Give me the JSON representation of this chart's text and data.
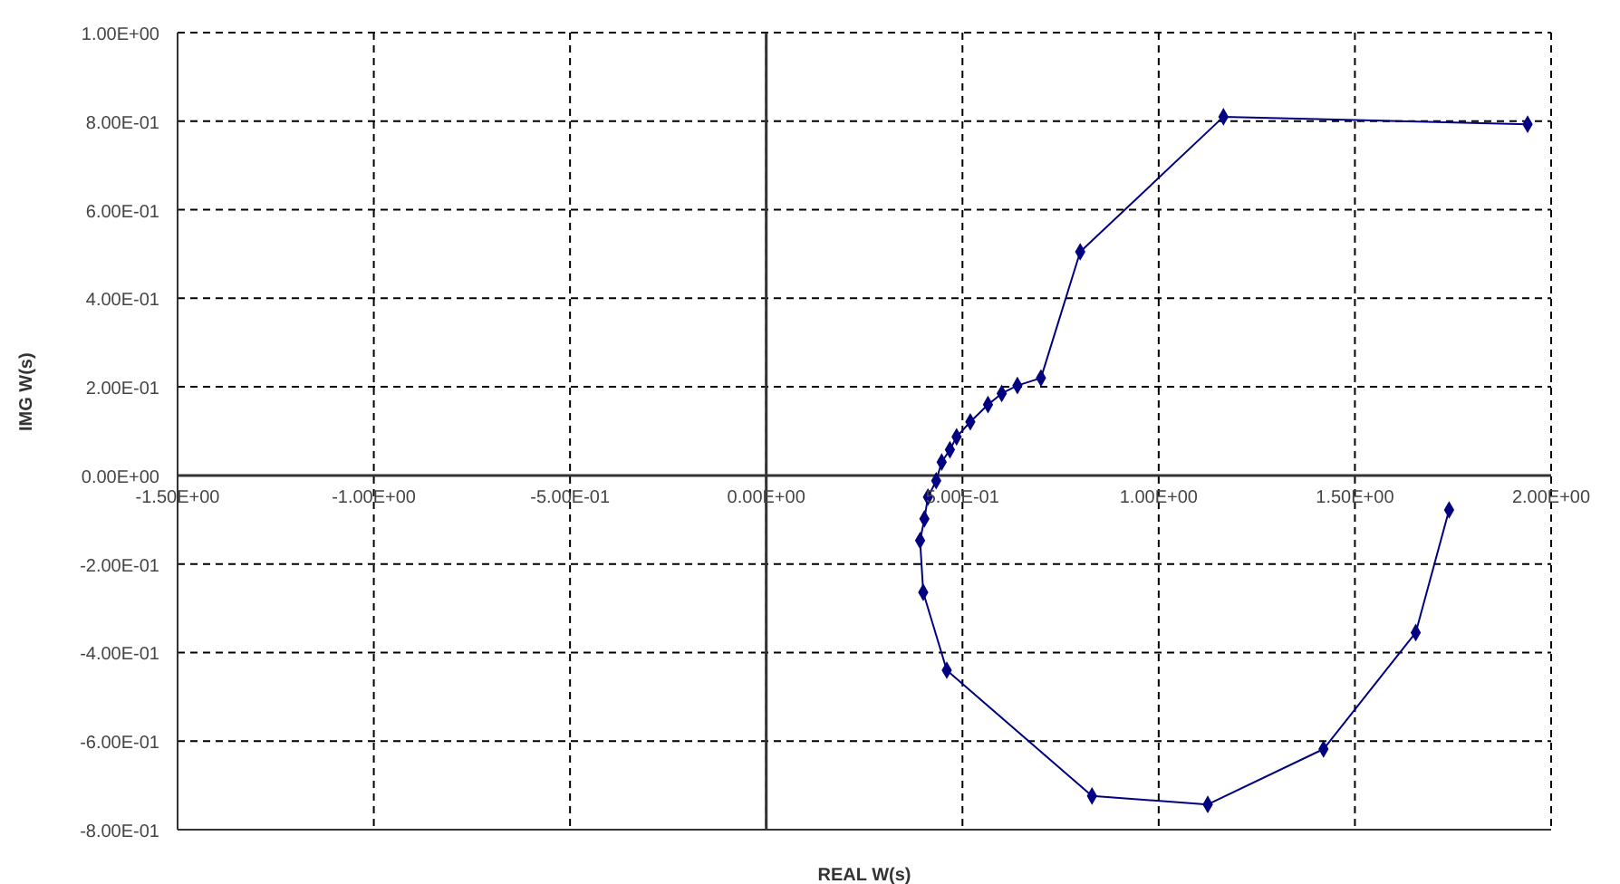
{
  "chart_data": {
    "type": "line",
    "xlabel": "REAL W(s)",
    "ylabel": "IMG W(s)",
    "xlim": [
      -1.5,
      2.0
    ],
    "ylim": [
      -0.8,
      1.0
    ],
    "xticks": [
      {
        "value": -1.5,
        "label": "-1.50E+00"
      },
      {
        "value": -1.0,
        "label": "-1.00E+00"
      },
      {
        "value": -0.5,
        "label": "-5.00E-01"
      },
      {
        "value": 0,
        "label": "0.00E+00"
      },
      {
        "value": 0.5,
        "label": "5.00E-01"
      },
      {
        "value": 1.0,
        "label": "1.00E+00"
      },
      {
        "value": 1.5,
        "label": "1.50E+00"
      },
      {
        "value": 2.0,
        "label": "2.00E+00"
      }
    ],
    "yticks": [
      {
        "value": -0.8,
        "label": "-8.00E-01"
      },
      {
        "value": -0.6,
        "label": "-6.00E-01"
      },
      {
        "value": -0.4,
        "label": "-4.00E-01"
      },
      {
        "value": -0.2,
        "label": "-2.00E-01"
      },
      {
        "value": 0,
        "label": "0.00E+00"
      },
      {
        "value": 0.2,
        "label": "2.00E-01"
      },
      {
        "value": 0.4,
        "label": "4.00E-01"
      },
      {
        "value": 0.6,
        "label": "6.00E-01"
      },
      {
        "value": 0.8,
        "label": "8.00E-01"
      },
      {
        "value": 1.0,
        "label": "1.00E+00"
      }
    ],
    "grid": true,
    "marker": "diamond",
    "line_style": "solid",
    "series": [
      {
        "color": "#000080",
        "x": [
          1.94,
          1.165,
          0.8,
          0.7,
          0.64,
          0.6,
          0.565,
          0.52,
          0.485,
          0.468,
          0.447,
          0.433,
          0.412,
          0.403,
          0.392,
          0.4,
          0.46,
          0.83,
          1.125,
          1.42,
          1.655,
          1.74
        ],
        "values": [
          0.793,
          0.81,
          0.505,
          0.22,
          0.203,
          0.185,
          0.16,
          0.121,
          0.087,
          0.058,
          0.03,
          -0.012,
          -0.049,
          -0.098,
          -0.147,
          -0.264,
          -0.44,
          -0.724,
          -0.743,
          -0.618,
          -0.355,
          -0.078
        ]
      }
    ]
  }
}
